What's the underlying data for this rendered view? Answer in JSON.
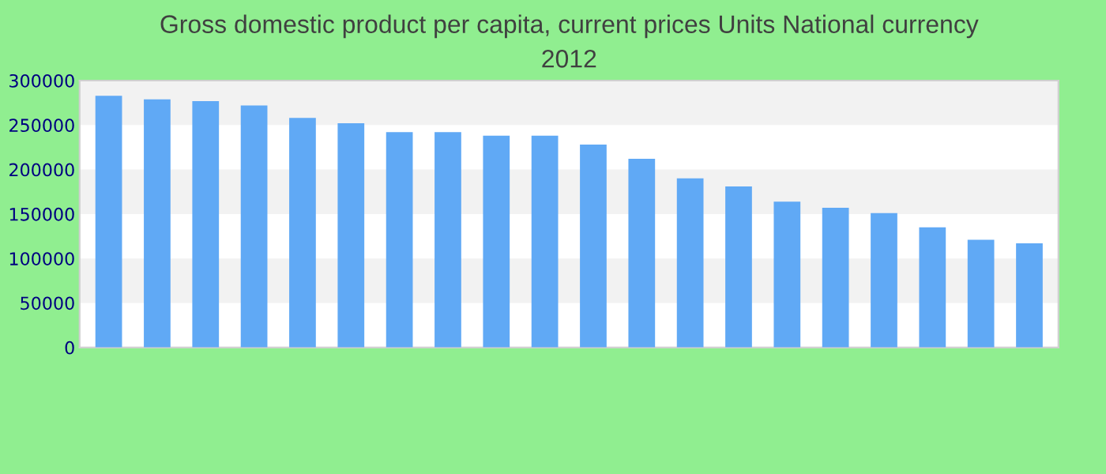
{
  "chart_data": {
    "type": "bar",
    "title": "Gross domestic product per capita, current prices Units National currency\n2012",
    "categories": [
      null,
      null,
      null,
      null,
      null,
      null,
      null,
      null,
      null,
      null,
      null,
      null,
      null,
      null,
      null,
      null,
      null,
      null,
      null,
      null
    ],
    "values": [
      283000,
      279000,
      277000,
      272000,
      258000,
      252000,
      242000,
      242000,
      238000,
      238000,
      228000,
      212000,
      190000,
      181000,
      164000,
      157000,
      151000,
      135000,
      121000,
      117000
    ],
    "color": "#60a9f5",
    "ylim": [
      0,
      300000
    ],
    "yticks": [
      0,
      50000,
      100000,
      150000,
      200000,
      250000,
      300000
    ]
  }
}
